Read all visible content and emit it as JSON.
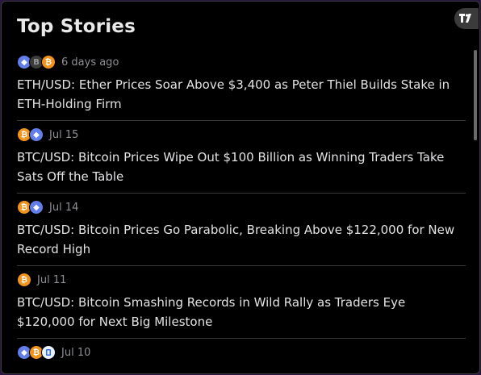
{
  "widget": {
    "title": "Top Stories"
  },
  "colors": {
    "background": "#000000",
    "bitcoin": "#f2931c",
    "ethereum": "#627eea"
  },
  "stories": [
    {
      "time": "6 days ago",
      "icons": [
        "ethereum-icon",
        "b-icon",
        "bitcoin-icon"
      ],
      "headline": "ETH/USD: Ether Prices Soar Above $3,400 as Peter Thiel Builds Stake in ETH-Holding Firm"
    },
    {
      "time": "Jul 15",
      "icons": [
        "bitcoin-icon",
        "ethereum-icon"
      ],
      "headline": "BTC/USD: Bitcoin Prices Wipe Out $100 Billion as Winning Traders Take Sats Off the Table"
    },
    {
      "time": "Jul 14",
      "icons": [
        "bitcoin-icon",
        "ethereum-icon"
      ],
      "headline": "BTC/USD: Bitcoin Prices Go Parabolic, Breaking Above $122,000 for New Record High"
    },
    {
      "time": "Jul 11",
      "icons": [
        "bitcoin-icon"
      ],
      "headline": "BTC/USD: Bitcoin Smashing Records in Wild Rally as Traders Eye $120,000 for Next Big Milestone"
    },
    {
      "time": "Jul 10",
      "icons": [
        "ethereum-icon",
        "bitcoin-icon",
        "blue-coin-icon"
      ],
      "headline": ""
    }
  ],
  "icon_glyphs": {
    "b": "B",
    "bitcoin": "₿",
    "ethereum": "◆"
  }
}
